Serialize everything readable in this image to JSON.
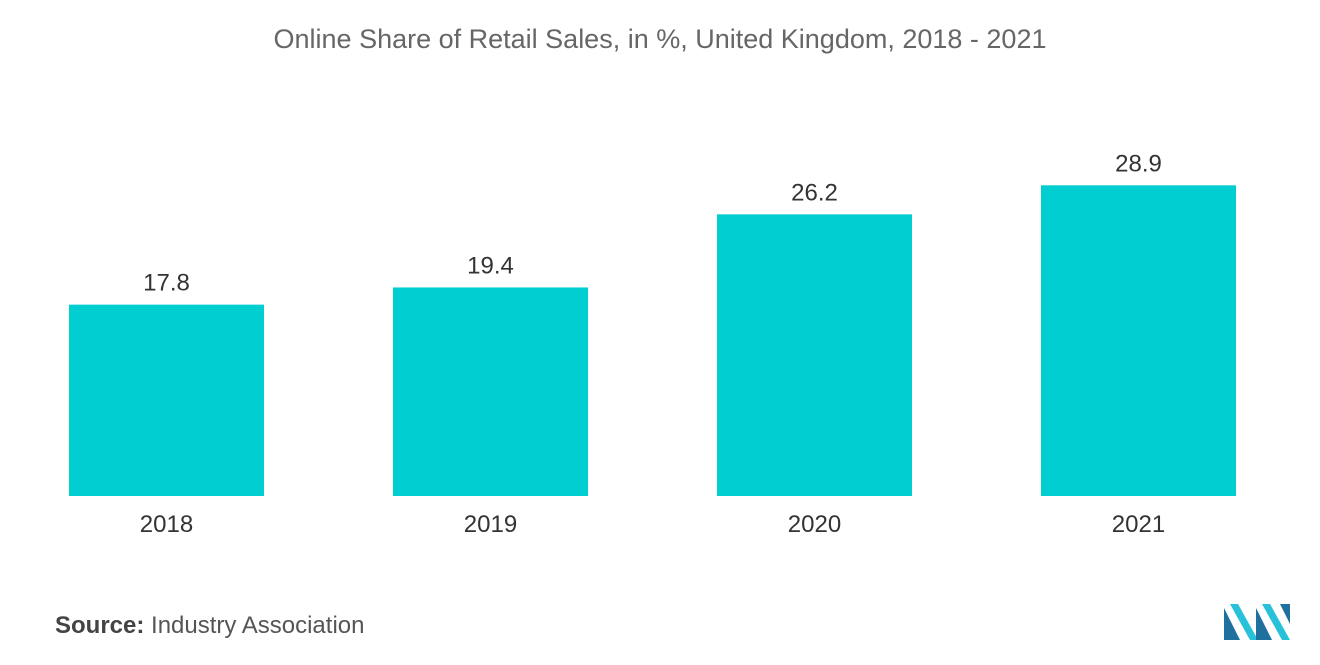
{
  "chart_data": {
    "type": "bar",
    "title": "Online Share of Retail Sales, in %, United Kingdom, 2018 - 2021",
    "categories": [
      "2018",
      "2019",
      "2020",
      "2021"
    ],
    "values": [
      17.8,
      19.4,
      26.2,
      28.9
    ],
    "value_labels": [
      "17.8",
      "19.4",
      "26.2",
      "28.9"
    ],
    "xlabel": "",
    "ylabel": "",
    "ylim": [
      0,
      30
    ],
    "grid": false,
    "bar_color": "#00CED1"
  },
  "source": {
    "prefix": "Source:",
    "text": "Industry Association"
  },
  "logo": {
    "icon": "mordor-intelligence-logo-icon",
    "colors": [
      "#1F6F9F",
      "#27C1D9"
    ]
  }
}
